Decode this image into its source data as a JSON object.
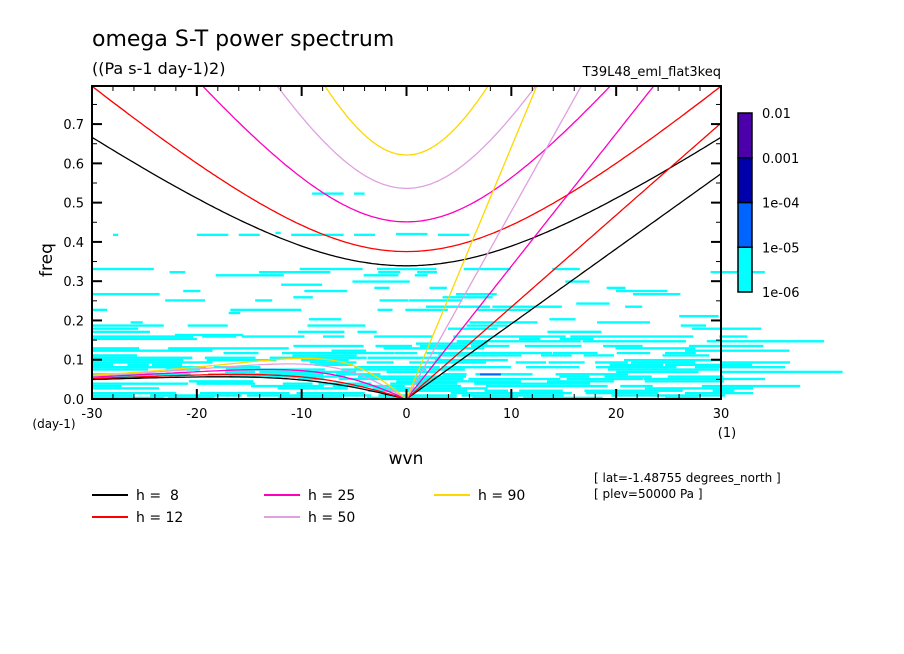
{
  "chart_data": {
    "type": "heatmap",
    "title": "omega S-T power spectrum",
    "subtitle": "((Pa s-1 day-1)2)",
    "experiment": "T39L48_eml_flat3keq",
    "xlabel": "wvn",
    "xunits": "(1)",
    "ylabel": "freq",
    "yunits": "(day-1)",
    "xlim": [
      -30,
      30
    ],
    "ylim": [
      0,
      0.8
    ],
    "xticks": [
      -30,
      -20,
      -10,
      0,
      10,
      20,
      30
    ],
    "xtick_labels": [
      "-30",
      "-20",
      "-10",
      "0",
      "10",
      "20",
      "30"
    ],
    "yticks": [
      0.0,
      0.1,
      0.2,
      0.3,
      0.4,
      0.5,
      0.6,
      0.7
    ],
    "ytick_labels": [
      "0.0",
      "0.1",
      "0.2",
      "0.3",
      "0.4",
      "0.5",
      "0.6",
      "0.7"
    ],
    "colorbar": {
      "levels": [
        "1e-06",
        "1e-05",
        "1e-04",
        "0.001",
        "0.01"
      ],
      "colors": [
        "#00ffff",
        "#0064ff",
        "#0000aa",
        "#4b00aa"
      ]
    },
    "dispersion_curves": [
      {
        "label": "h =  8",
        "h": 8,
        "color": "#000000"
      },
      {
        "label": "h = 12",
        "h": 12,
        "color": "#ff0000"
      },
      {
        "label": "h = 25",
        "h": 25,
        "color": "#ff00c0"
      },
      {
        "label": "h = 50",
        "h": 50,
        "color": "#e0a0e0"
      },
      {
        "label": "h = 90",
        "h": 90,
        "color": "#ffd700"
      }
    ],
    "annotations": [
      "[ lat=-1.48755 degrees_north ]",
      "[ plev=50000 Pa ]"
    ]
  }
}
